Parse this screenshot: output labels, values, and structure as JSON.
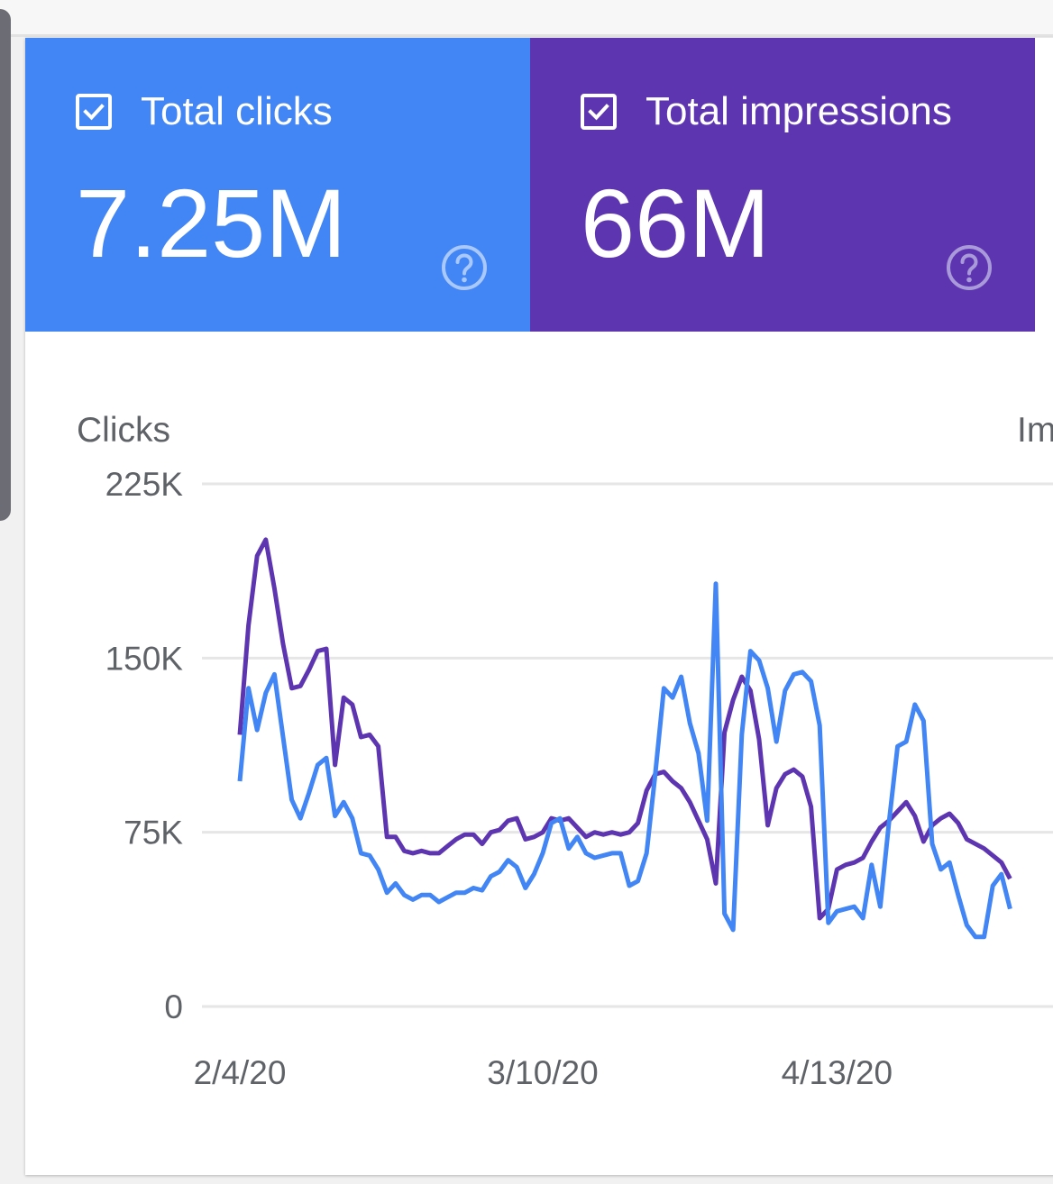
{
  "metrics": {
    "clicks": {
      "label": "Total clicks",
      "value": "7.25M",
      "checked": true,
      "color": "#4285f4",
      "help_icon": "help-circle-icon"
    },
    "impressions": {
      "label": "Total impressions",
      "value": "66M",
      "checked": true,
      "color": "#5e35b1",
      "help_icon": "help-circle-icon"
    }
  },
  "chart_data": {
    "type": "line",
    "left_axis_title": "Clicks",
    "right_axis_title_visible": "Im",
    "y_ticks": [
      "225K",
      "150K",
      "75K",
      "0"
    ],
    "ylim": [
      0,
      225000
    ],
    "x_tick_labels": [
      "2/4/20",
      "3/10/20",
      "4/13/20"
    ],
    "x_tick_indices": [
      0,
      35,
      69
    ],
    "grid": true,
    "series": [
      {
        "key": "clicks",
        "color": "#4285f4",
        "values": [
          97000,
          137000,
          119000,
          135000,
          143000,
          116000,
          89000,
          81000,
          92000,
          104000,
          107000,
          82000,
          88000,
          81000,
          66000,
          65000,
          59000,
          49000,
          53000,
          48000,
          46000,
          48000,
          48000,
          45000,
          47000,
          49000,
          49000,
          51000,
          50000,
          56000,
          58000,
          63000,
          60000,
          51000,
          57000,
          66000,
          79000,
          81000,
          68000,
          73000,
          66000,
          64000,
          65000,
          66000,
          66000,
          52000,
          54000,
          66000,
          100000,
          137000,
          133000,
          142000,
          122000,
          109000,
          80000,
          182000,
          40000,
          33000,
          117000,
          153000,
          149000,
          137000,
          114000,
          136000,
          143000,
          144000,
          140000,
          121000,
          36000,
          41000,
          42000,
          43000,
          38000,
          61000,
          43000,
          79000,
          112000,
          114000,
          130000,
          123000,
          70000,
          59000,
          62000,
          48000,
          35000,
          30000,
          30000,
          52000,
          57000,
          42000
        ]
      },
      {
        "key": "impressions",
        "series_name": "Total impressions",
        "color": "#5e35b1",
        "values": [
          117000,
          164000,
          194000,
          201000,
          180000,
          156000,
          137000,
          138000,
          145000,
          153000,
          154000,
          104000,
          133000,
          130000,
          116000,
          117000,
          112000,
          73000,
          73000,
          67000,
          66000,
          67000,
          66000,
          66000,
          69000,
          72000,
          74000,
          74000,
          70000,
          75000,
          76000,
          80000,
          81000,
          72000,
          73000,
          75000,
          81000,
          80000,
          81000,
          77000,
          73000,
          75000,
          74000,
          75000,
          74000,
          75000,
          79000,
          93000,
          100000,
          101000,
          97000,
          94000,
          88000,
          80000,
          72000,
          53000,
          118000,
          132000,
          142000,
          136000,
          115000,
          78000,
          94000,
          100000,
          102000,
          99000,
          86000,
          38000,
          42000,
          59000,
          61000,
          62000,
          64000,
          71000,
          77000,
          80000,
          84000,
          88000,
          82000,
          71000,
          78000,
          81000,
          83000,
          79000,
          72000,
          70000,
          68000,
          65000,
          62000,
          55000
        ]
      }
    ]
  }
}
